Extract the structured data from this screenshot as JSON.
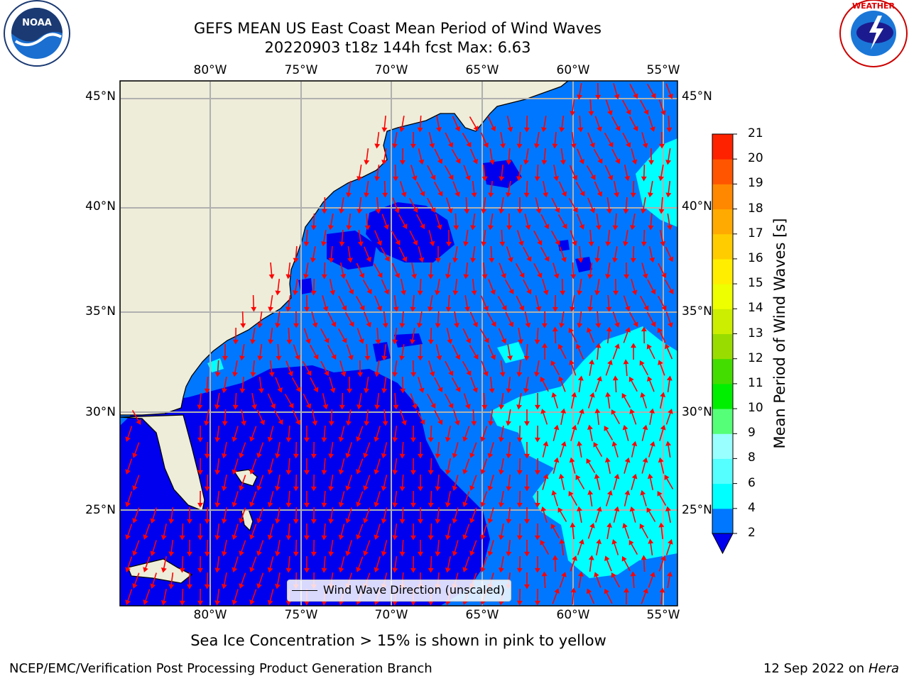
{
  "title_line1": "GEFS MEAN US East Coast Mean Period of Wind Waves",
  "title_line2": "20220903 t18z 144h fcst   Max: 6.63",
  "lon_labels": [
    "80°W",
    "75°W",
    "70°W",
    "65°W",
    "60°W",
    "55°W"
  ],
  "lat_labels": [
    "45°N",
    "40°N",
    "35°N",
    "30°N",
    "25°N"
  ],
  "legend_text": "Wind Wave Direction (unscaled)",
  "colorbar": {
    "label": "Mean Period of Wind Waves [s]",
    "ticks": [
      "21",
      "20",
      "19",
      "18",
      "17",
      "16",
      "15",
      "14",
      "13",
      "12",
      "11",
      "10",
      "9",
      "8",
      "6",
      "4",
      "2"
    ],
    "colors": [
      "#0000ee",
      "#0077ff",
      "#00ffff",
      "#55ffff",
      "#99ffff",
      "#55ff77",
      "#00ee00",
      "#44dd00",
      "#99dd00",
      "#ccee00",
      "#eeff00",
      "#ffee00",
      "#ffcc00",
      "#ffaa00",
      "#ff8800",
      "#ff5500",
      "#ff2200",
      "#ff0000"
    ]
  },
  "map_colors": {
    "land": "#eeedd9",
    "period_0_2": "#0000ee",
    "period_2_4": "#0077ff",
    "period_4_6": "#00ffff",
    "arrow": "#ff0000",
    "grid": "#b0b0b0"
  },
  "sea_ice_note": "Sea Ice Concentration > 15% is shown in pink to yellow",
  "footer_left": "NCEP/EMC/Verification Post Processing Product Generation Branch",
  "footer_date": "12 Sep 2022 on",
  "footer_machine": "Hera",
  "noaa_logo_text": "NOAA",
  "nws_logo_text": "NATIONAL WEATHER SERVICE"
}
